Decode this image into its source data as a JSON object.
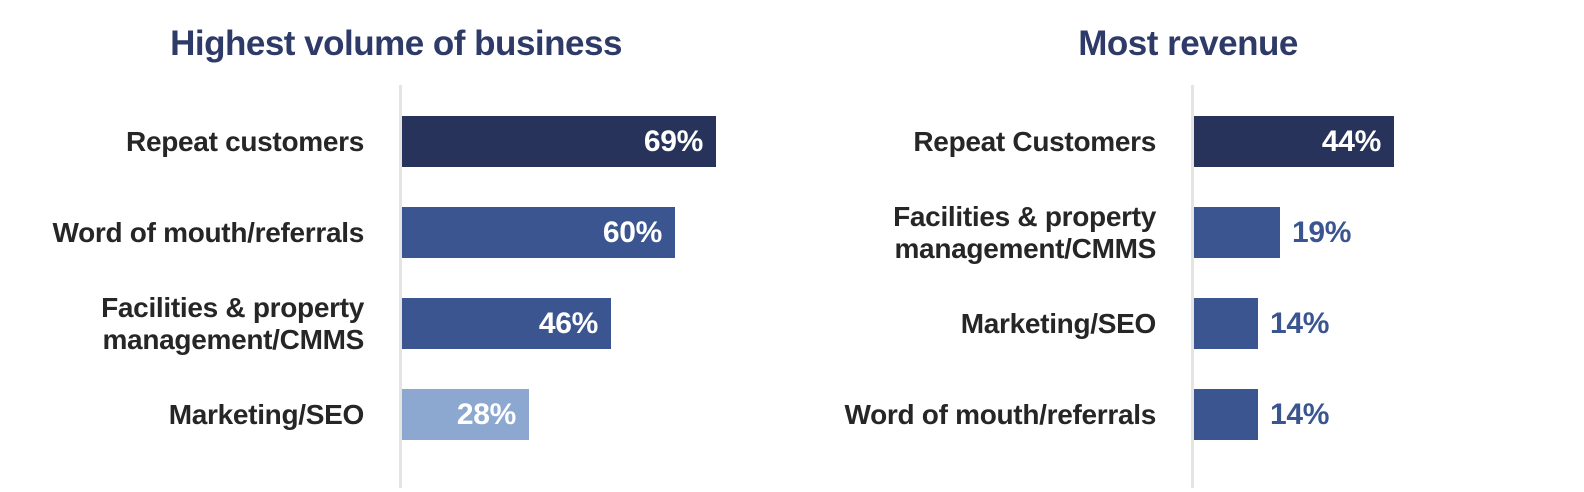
{
  "style": {
    "title_color": "#2E3A67",
    "category_label_color": "#262626",
    "value_inside_color": "#FFFFFF",
    "value_outside_color": "#3A5590",
    "axis_line_color": "#E4E4E2",
    "background": "#FFFFFF"
  },
  "chart_data": [
    {
      "type": "bar",
      "orientation": "horizontal",
      "title": "Highest volume of business",
      "categories": [
        "Repeat customers",
        "Word of mouth/referrals",
        "Facilities & property management/CMMS",
        "Marketing/SEO"
      ],
      "values": [
        69,
        60,
        46,
        28
      ],
      "value_labels": [
        "69%",
        "60%",
        "46%",
        "28%"
      ],
      "bar_colors": [
        "#27335A",
        "#3A5590",
        "#3A5590",
        "#8CA7D0"
      ],
      "value_label_positions": [
        "inside",
        "inside",
        "inside",
        "inside"
      ],
      "xlim": [
        0,
        100
      ],
      "grid": false,
      "legend": false,
      "axis_line": "left-vertical"
    },
    {
      "type": "bar",
      "orientation": "horizontal",
      "title": "Most revenue",
      "categories": [
        "Repeat Customers",
        "Facilities & property management/CMMS",
        "Marketing/SEO",
        "Word of mouth/referrals"
      ],
      "values": [
        44,
        19,
        14,
        14
      ],
      "value_labels": [
        "44%",
        "19%",
        "14%",
        "14%"
      ],
      "bar_colors": [
        "#27335A",
        "#3A5590",
        "#3A5590",
        "#3A5590"
      ],
      "value_label_positions": [
        "inside",
        "outside",
        "outside",
        "outside"
      ],
      "xlim": [
        0,
        100
      ],
      "grid": false,
      "legend": false,
      "axis_line": "left-vertical"
    }
  ]
}
